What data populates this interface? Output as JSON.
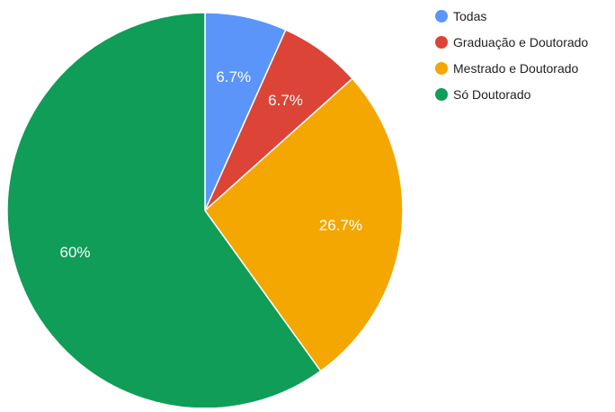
{
  "chart_data": {
    "type": "pie",
    "categories": [
      "Todas",
      "Graduação e Doutorado",
      "Mestrado e Doutorado",
      "Só Doutorado"
    ],
    "values": [
      6.7,
      6.7,
      26.7,
      60
    ],
    "labels": [
      "6.7%",
      "6.7%",
      "26.7%",
      "60%"
    ],
    "colors": [
      "#5b95f9",
      "#db4437",
      "#f4a700",
      "#0f9d58"
    ],
    "legend_position": "right",
    "start_angle": "top",
    "direction": "clockwise"
  }
}
